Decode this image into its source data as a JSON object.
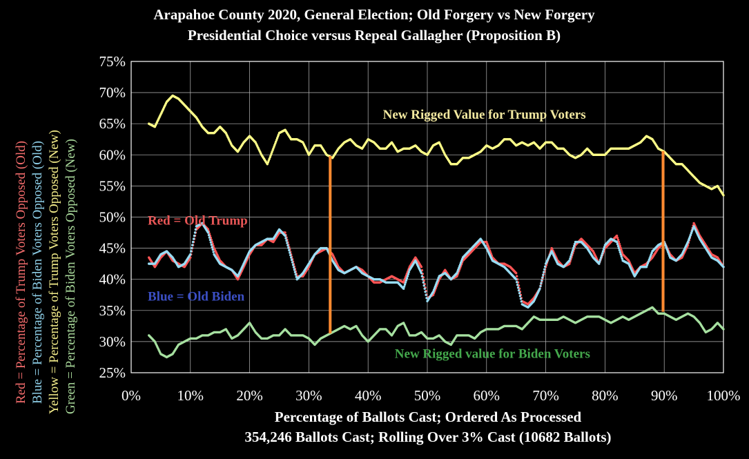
{
  "chart_data": {
    "type": "scatter",
    "title": "Arapahoe County 2020, General Election; Old Forgery vs New Forgery",
    "subtitle": "Presidential Choice versus Repeal Gallagher (Proposition B)",
    "xlabel": "Percentage of  Ballots Cast; Ordered As Processed",
    "xlabel2": "354,246 Ballots Cast; Rolling Over 3% Cast (10682 Ballots)",
    "ylabels": [
      {
        "text": "Red = Percentage of Trump Voters Opposed (Old)",
        "color": "#f36c6c"
      },
      {
        "text": "Blue = Percentage of Biden Voters Opposed (Old)",
        "color": "#8ecfe8"
      },
      {
        "text": "Yellow = Percentage of Trump Voters Opposed (New)",
        "color": "#f3ec8a"
      },
      {
        "text": "Green = Percentage of Biden Voters Opposed (New)",
        "color": "#a8d89a"
      }
    ],
    "xlim": [
      0,
      100
    ],
    "ylim": [
      25,
      75
    ],
    "x_ticks": [
      "0%",
      "10%",
      "20%",
      "30%",
      "40%",
      "50%",
      "60%",
      "70%",
      "80%",
      "90%",
      "100%"
    ],
    "y_ticks": [
      "25%",
      "30%",
      "35%",
      "40%",
      "45%",
      "50%",
      "55%",
      "60%",
      "65%",
      "70%",
      "75%"
    ],
    "grid": true,
    "series": [
      {
        "name": "Yellow",
        "color": "#ffff88",
        "x": [
          3,
          4,
          5,
          6,
          7,
          8,
          9,
          10,
          11,
          12,
          13,
          14,
          15,
          16,
          17,
          18,
          19,
          20,
          21,
          22,
          23,
          24,
          25,
          26,
          27,
          28,
          29,
          30,
          31,
          32,
          33,
          34,
          35,
          36,
          37,
          38,
          39,
          40,
          41,
          42,
          43,
          44,
          45,
          46,
          47,
          48,
          49,
          50,
          51,
          52,
          53,
          54,
          55,
          56,
          57,
          58,
          59,
          60,
          61,
          62,
          63,
          64,
          65,
          66,
          67,
          68,
          69,
          70,
          71,
          72,
          73,
          74,
          75,
          76,
          77,
          78,
          79,
          80,
          81,
          82,
          83,
          84,
          85,
          86,
          87,
          88,
          89,
          90,
          91,
          92,
          93,
          94,
          95,
          96,
          97,
          98,
          99,
          100
        ],
        "y": [
          65,
          64.5,
          66.5,
          68.5,
          69.5,
          69,
          68,
          67,
          66,
          64.5,
          63.5,
          63.5,
          64.5,
          63.5,
          61.5,
          60.5,
          62,
          63,
          62,
          60,
          58.5,
          61,
          63.5,
          64,
          62.5,
          62.5,
          62,
          60,
          61.5,
          61.5,
          60,
          59.5,
          61,
          62,
          62.5,
          61.5,
          61,
          62.5,
          62,
          61,
          61,
          62,
          60.5,
          61,
          61,
          61.5,
          60.5,
          60,
          61.5,
          62,
          60,
          58.5,
          58.5,
          59.5,
          59.5,
          60,
          60.5,
          61.5,
          61,
          61.5,
          62.5,
          62.5,
          61.5,
          62,
          61.5,
          62,
          61,
          62,
          62,
          61,
          61,
          60,
          59.5,
          60,
          61,
          60,
          60,
          60,
          61,
          61,
          61,
          61,
          61.5,
          62,
          63,
          62.5,
          61,
          60.5,
          59.5,
          58.5,
          58.5,
          57.5,
          56.5,
          55.5,
          55,
          54.5,
          55,
          53.5
        ]
      },
      {
        "name": "Red",
        "color": "#ff5555",
        "x": [
          3,
          4,
          5,
          6,
          7,
          8,
          9,
          10,
          11,
          12,
          13,
          14,
          15,
          16,
          17,
          18,
          19,
          20,
          21,
          22,
          23,
          24,
          25,
          26,
          27,
          28,
          29,
          30,
          31,
          32,
          33,
          34,
          35,
          36,
          37,
          38,
          39,
          40,
          41,
          42,
          43,
          44,
          45,
          46,
          47,
          48,
          49,
          50,
          51,
          52,
          53,
          54,
          55,
          56,
          57,
          58,
          59,
          60,
          61,
          62,
          63,
          64,
          65,
          66,
          67,
          68,
          69,
          70,
          71,
          72,
          73,
          74,
          75,
          76,
          77,
          78,
          79,
          80,
          81,
          82,
          83,
          84,
          85,
          86,
          87,
          88,
          89,
          90,
          91,
          92,
          93,
          94,
          95,
          96,
          97,
          98,
          99,
          100
        ],
        "y": [
          43.5,
          42,
          43.5,
          44.5,
          43,
          42.5,
          42,
          43.5,
          48,
          49,
          48,
          45,
          43,
          42,
          41.5,
          40,
          42,
          44,
          45.5,
          45.5,
          46.5,
          46,
          47.5,
          47.5,
          44,
          40.5,
          40.5,
          42,
          44,
          44.5,
          45,
          44,
          42,
          41,
          41.5,
          42,
          41.5,
          40.5,
          39.5,
          39.5,
          40,
          40.5,
          40,
          39.5,
          42,
          43.5,
          42,
          37,
          37.5,
          40,
          41.5,
          40,
          40.5,
          43,
          44,
          45,
          46,
          46,
          43.5,
          42.5,
          42.5,
          42,
          41,
          36.5,
          36,
          37,
          38.5,
          42,
          45,
          43,
          42,
          42.5,
          45.5,
          46.5,
          45.5,
          44.5,
          42.5,
          45,
          46,
          47,
          44,
          43,
          41,
          42,
          42.5,
          43.5,
          45,
          46,
          44,
          43,
          43.5,
          45.5,
          49,
          47,
          45.5,
          44,
          43.5,
          42
        ]
      },
      {
        "name": "Blue",
        "color": "#99ddf4",
        "x": [
          3,
          4,
          5,
          6,
          7,
          8,
          9,
          10,
          11,
          12,
          13,
          14,
          15,
          16,
          17,
          18,
          19,
          20,
          21,
          22,
          23,
          24,
          25,
          26,
          27,
          28,
          29,
          30,
          31,
          32,
          33,
          34,
          35,
          36,
          37,
          38,
          39,
          40,
          41,
          42,
          43,
          44,
          45,
          46,
          47,
          48,
          49,
          50,
          51,
          52,
          53,
          54,
          55,
          56,
          57,
          58,
          59,
          60,
          61,
          62,
          63,
          64,
          65,
          66,
          67,
          68,
          69,
          70,
          71,
          72,
          73,
          74,
          75,
          76,
          77,
          78,
          79,
          80,
          81,
          82,
          83,
          84,
          85,
          86,
          87,
          88,
          89,
          90,
          91,
          92,
          93,
          94,
          95,
          96,
          97,
          98,
          99,
          100
        ],
        "y": [
          42.5,
          42.5,
          44,
          44.5,
          43.5,
          42,
          42.5,
          44,
          48.5,
          49,
          47.5,
          44,
          42.5,
          42,
          41.5,
          40.5,
          42.5,
          44.5,
          45.5,
          46,
          46.5,
          46.5,
          48,
          47,
          43.5,
          40,
          41,
          42.5,
          44,
          45,
          45,
          43,
          41.5,
          41,
          41.5,
          42,
          41,
          40.5,
          40,
          40,
          39.5,
          39.5,
          39.5,
          38.5,
          41.5,
          43,
          41,
          36.5,
          38,
          40.5,
          41,
          40,
          41,
          43.5,
          44.5,
          45.5,
          46.5,
          45,
          43,
          42.5,
          42,
          41,
          40,
          36,
          35.5,
          36.5,
          38.5,
          42.5,
          44.5,
          42.5,
          42,
          43,
          46,
          46,
          45,
          43.5,
          42.5,
          45.5,
          46.5,
          46,
          43,
          42.5,
          40.5,
          42,
          42,
          44.5,
          45.5,
          46,
          43.5,
          43,
          44,
          46,
          48.5,
          46.5,
          45,
          43.5,
          43,
          42
        ]
      },
      {
        "name": "Green",
        "color": "#a6e0a0",
        "x": [
          3,
          4,
          5,
          6,
          7,
          8,
          9,
          10,
          11,
          12,
          13,
          14,
          15,
          16,
          17,
          18,
          19,
          20,
          21,
          22,
          23,
          24,
          25,
          26,
          27,
          28,
          29,
          30,
          31,
          32,
          33,
          34,
          35,
          36,
          37,
          38,
          39,
          40,
          41,
          42,
          43,
          44,
          45,
          46,
          47,
          48,
          49,
          50,
          51,
          52,
          53,
          54,
          55,
          56,
          57,
          58,
          59,
          60,
          61,
          62,
          63,
          64,
          65,
          66,
          67,
          68,
          69,
          70,
          71,
          72,
          73,
          74,
          75,
          76,
          77,
          78,
          79,
          80,
          81,
          82,
          83,
          84,
          85,
          86,
          87,
          88,
          89,
          90,
          91,
          92,
          93,
          94,
          95,
          96,
          97,
          98,
          99,
          100
        ],
        "y": [
          31,
          30,
          28,
          27.5,
          28,
          29.5,
          30,
          30.5,
          30.5,
          31,
          31,
          31.5,
          31.5,
          32,
          30.5,
          31,
          32,
          33,
          31.5,
          30.5,
          30.5,
          31,
          31,
          32,
          31,
          31,
          31,
          30.5,
          29.5,
          30.5,
          31,
          31.5,
          32,
          32.5,
          32,
          32.5,
          31,
          30,
          31,
          32,
          32,
          31,
          32.5,
          33,
          31,
          31,
          31.5,
          30.5,
          30.5,
          31,
          30,
          29.5,
          31,
          31,
          31,
          30.5,
          31.5,
          32,
          32,
          32,
          32.5,
          32.5,
          32.5,
          32,
          33,
          34,
          33.5,
          33.5,
          33.5,
          33.5,
          34,
          33.5,
          33,
          33.5,
          34,
          34,
          34,
          33.5,
          33,
          33.5,
          34,
          33.5,
          34,
          34.5,
          35,
          35.5,
          34.5,
          34.5,
          34,
          33.5,
          34,
          34.5,
          34,
          33,
          31.5,
          32,
          33,
          32
        ]
      }
    ],
    "verticals": [
      {
        "x": 33.6,
        "y1": 31.3,
        "y2": 59.8,
        "color": "#ff8a30"
      },
      {
        "x": 89.8,
        "y1": 34.8,
        "y2": 60.6,
        "color": "#ff8a30"
      }
    ],
    "annotations": [
      {
        "text": "New Rigged Value for Trump Voters",
        "x": 42.5,
        "y": 65.8,
        "color": "#f3e9a0"
      },
      {
        "text": "Red = Old Trump",
        "x": 2.8,
        "y": 48.8,
        "color": "#e85656"
      },
      {
        "text": "Blue = Old Biden",
        "x": 2.8,
        "y": 36.6,
        "color": "#3b4fc4"
      },
      {
        "text": "New Rigged value for Biden Voters",
        "x": 44.5,
        "y": 27.4,
        "color": "#44a84c"
      }
    ]
  }
}
